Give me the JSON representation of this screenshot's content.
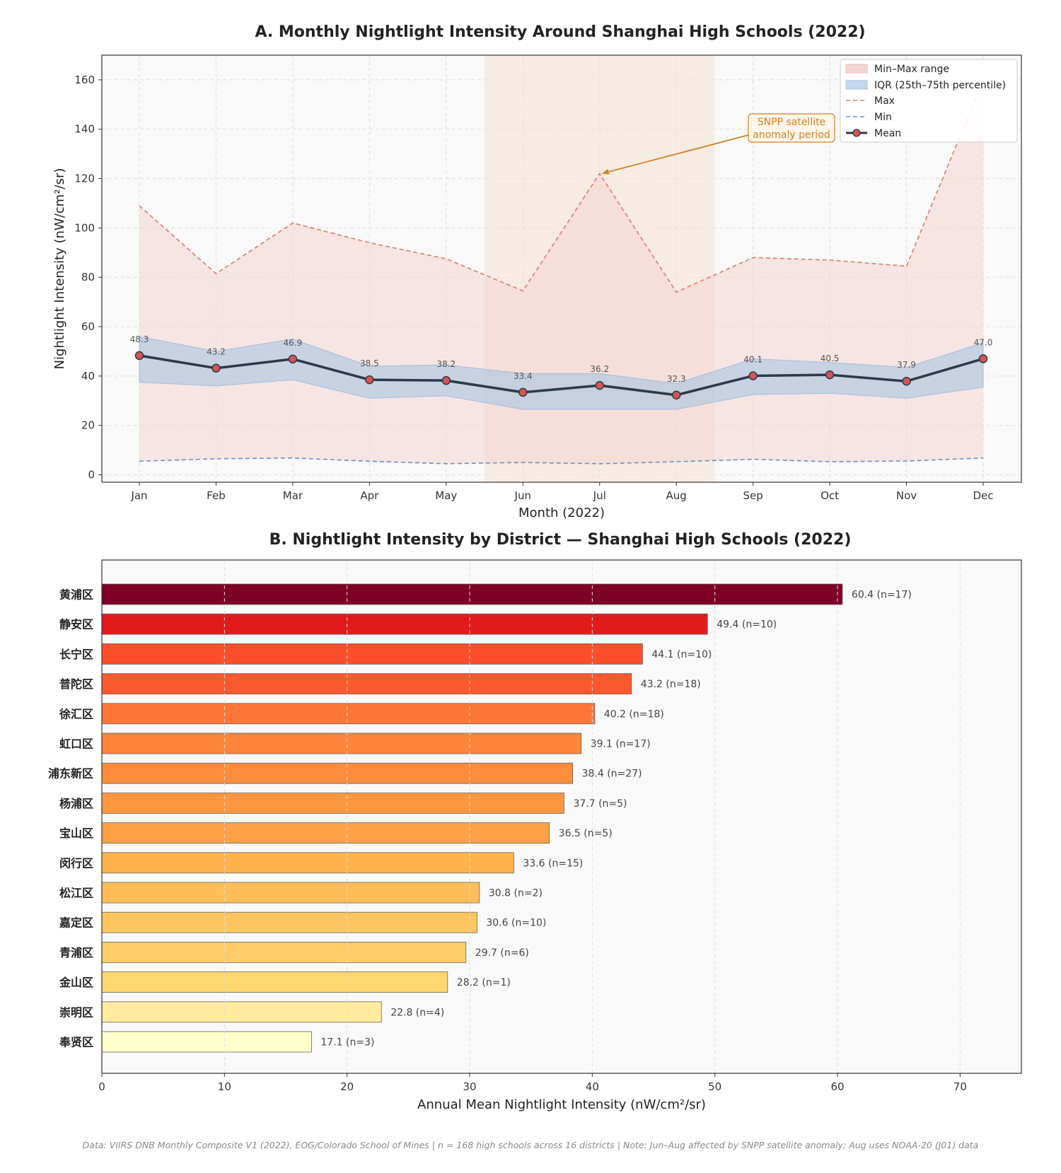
{
  "chart_data": [
    {
      "type": "line",
      "title": "A. Monthly Nightlight Intensity Around Shanghai High Schools (2022)",
      "xlabel": "Month (2022)",
      "ylabel": "Nightlight Intensity (nW/cm²/sr)",
      "ylim": [
        -3,
        170
      ],
      "yticks": [
        0,
        20,
        40,
        60,
        80,
        100,
        120,
        140,
        160
      ],
      "grid": true,
      "legend_position": "top-right",
      "categories": [
        "Jan",
        "Feb",
        "Mar",
        "Apr",
        "May",
        "Jun",
        "Jul",
        "Aug",
        "Sep",
        "Oct",
        "Nov",
        "Dec"
      ],
      "mean": [
        48.3,
        43.2,
        46.9,
        38.5,
        38.2,
        33.4,
        36.2,
        32.3,
        40.1,
        40.5,
        37.9,
        47.0
      ],
      "max": [
        109,
        81.5,
        102,
        94,
        87.5,
        74.5,
        122,
        74,
        88,
        87,
        84.5,
        160
      ],
      "min": [
        5.5,
        6.5,
        6.8,
        5.5,
        4.5,
        5,
        4.5,
        5.3,
        6.3,
        5.3,
        5.6,
        6.8
      ],
      "q25": [
        37.5,
        36,
        38.5,
        31,
        32,
        26.5,
        26.5,
        26.5,
        32.5,
        33,
        31,
        35.5
      ],
      "q75": [
        56,
        50,
        55,
        44,
        44.5,
        41,
        41,
        37,
        47,
        45.5,
        43.5,
        53.5
      ],
      "mean_labels": [
        "48.3",
        "43.2",
        "46.9",
        "38.5",
        "38.2",
        "33.4",
        "36.2",
        "32.3",
        "40.1",
        "40.5",
        "37.9",
        "47.0"
      ],
      "shaded_period": [
        "Jun",
        "Aug"
      ],
      "annotation": {
        "text_line1": "SNPP satellite",
        "text_line2": "anomaly period",
        "points_to": {
          "month": "Jul",
          "value": 122
        }
      },
      "legend": [
        "Min–Max range",
        "IQR (25th–75th percentile)",
        "Max",
        "Min",
        "Mean"
      ],
      "colors": {
        "range": "#f4d6d0",
        "iqr": "#a9c4e4",
        "max": "#e07a6a",
        "min": "#6f8fbf",
        "mean": "#2b3a4a",
        "mean_marker": "#d9534f",
        "shade": "#f2e2d2",
        "annot": "#d4801e"
      }
    },
    {
      "type": "bar",
      "orientation": "horizontal",
      "title": "B. Nightlight Intensity by District — Shanghai High Schools (2022)",
      "xlabel": "Annual Mean Nightlight Intensity (nW/cm²/sr)",
      "xlim": [
        0,
        75
      ],
      "xticks": [
        0,
        10,
        20,
        30,
        40,
        50,
        60,
        70
      ],
      "grid": true,
      "categories": [
        "黄浦区",
        "静安区",
        "长宁区",
        "普陀区",
        "徐汇区",
        "虹口区",
        "浦东新区",
        "杨浦区",
        "宝山区",
        "闵行区",
        "松江区",
        "嘉定区",
        "青浦区",
        "金山区",
        "崇明区",
        "奉贤区"
      ],
      "values": [
        60.4,
        49.4,
        44.1,
        43.2,
        40.2,
        39.1,
        38.4,
        37.7,
        36.5,
        33.6,
        30.8,
        30.6,
        29.7,
        28.2,
        22.8,
        17.1
      ],
      "labels": [
        "60.4  (n=17)",
        "49.4  (n=10)",
        "44.1  (n=10)",
        "43.2  (n=18)",
        "40.2  (n=18)",
        "39.1  (n=17)",
        "38.4  (n=27)",
        "37.7  (n=5)",
        "36.5  (n=5)",
        "33.6  (n=15)",
        "30.8  (n=2)",
        "30.6  (n=10)",
        "29.7  (n=6)",
        "28.2  (n=1)",
        "22.8  (n=4)",
        "17.1  (n=3)"
      ],
      "colors": [
        "#7f0026",
        "#e31a1c",
        "#fc4e2a",
        "#fc582d",
        "#fd7636",
        "#fd853a",
        "#fd8c3c",
        "#fd963f",
        "#fea046",
        "#feb24c",
        "#febd58",
        "#fec560",
        "#fecd68",
        "#fed76f",
        "#ffeb9b",
        "#ffffcc"
      ]
    }
  ],
  "footer": "Data: VIIRS DNB Monthly Composite V1 (2022), EOG/Colorado School of Mines  |  n = 168 high schools across 16 districts  |  Note: Jun–Aug affected by SNPP satellite anomaly; Aug uses NOAA-20 (J01) data"
}
